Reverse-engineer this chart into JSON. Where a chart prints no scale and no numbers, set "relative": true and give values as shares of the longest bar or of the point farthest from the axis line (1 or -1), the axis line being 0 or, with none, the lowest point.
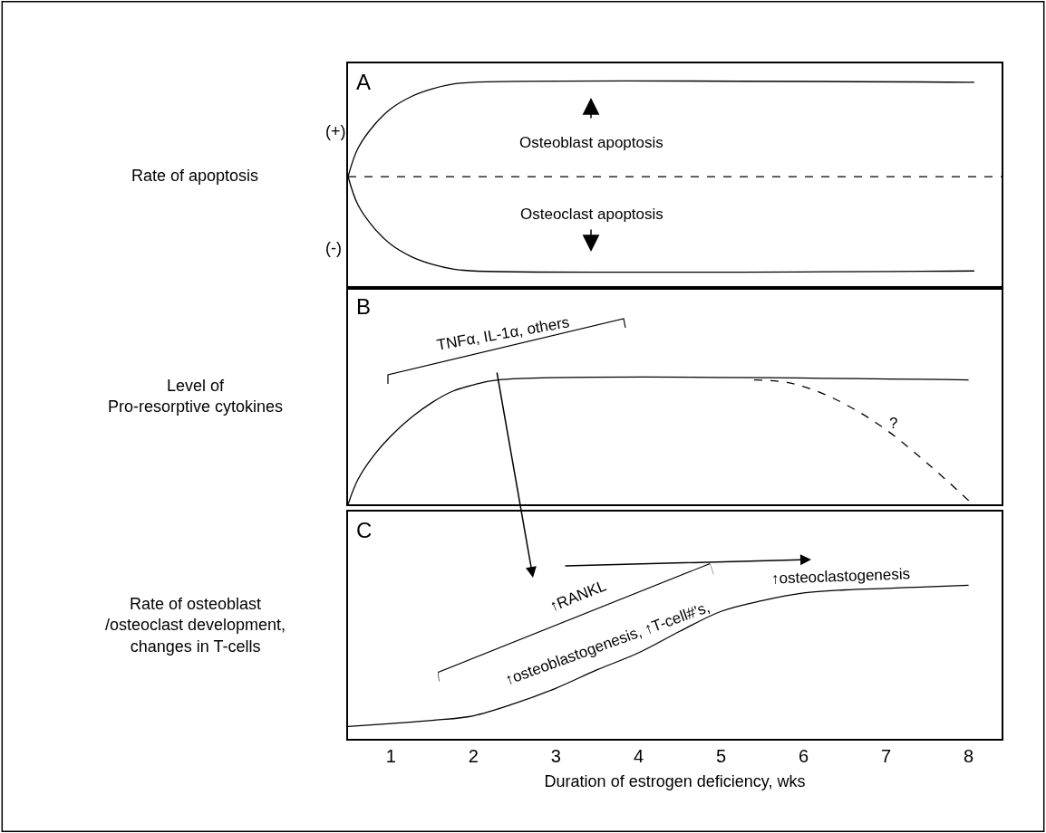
{
  "chart_data": [
    {
      "type": "line",
      "title": "A",
      "ylabel": "Rate of apoptosis",
      "relative": true,
      "tick_labels": false,
      "xlim": [
        0.48,
        8.4
      ],
      "xticks": [
        1,
        2,
        3,
        4,
        5,
        6,
        7,
        8
      ],
      "series": [
        {
          "color": "#000000",
          "x": [
            0.48,
            0.6,
            0.8,
            1.0,
            1.25,
            1.5,
            1.75,
            2.0,
            8.07
          ],
          "values": [
            0,
            0.3,
            0.55,
            0.72,
            0.85,
            0.93,
            0.98,
            1,
            1
          ]
        },
        {
          "color": "#000000",
          "x": [
            0.48,
            0.6,
            0.8,
            1.0,
            1.25,
            1.5,
            1.75,
            2.0,
            8.07
          ],
          "values": [
            0,
            -0.3,
            -0.55,
            -0.72,
            -0.85,
            -0.93,
            -0.98,
            -1,
            -1
          ]
        }
      ],
      "ref_lines": [
        {
          "axis": "y",
          "value": 0,
          "line_style": "dashed",
          "color": "#000000"
        }
      ],
      "annotations": [
        "(+)",
        "(-)",
        "Osteoblast apoptosis",
        "Osteoclast apoptosis"
      ]
    },
    {
      "type": "line",
      "title": "B",
      "ylabel": "Level of\nPro-resorptive cytokines",
      "relative": true,
      "tick_labels": false,
      "xlim": [
        0.48,
        8.4
      ],
      "xticks": [
        1,
        2,
        3,
        4,
        5,
        6,
        7,
        8
      ],
      "series": [
        {
          "color": "#000000",
          "line_style": "solid",
          "x": [
            0.48,
            0.6,
            0.8,
            1.0,
            1.25,
            1.5,
            1.75,
            2.0,
            2.3,
            8.0
          ],
          "values": [
            0,
            0.2,
            0.4,
            0.55,
            0.7,
            0.82,
            0.91,
            0.96,
            1,
            1
          ]
        },
        {
          "color": "#000000",
          "line_style": "dashed",
          "x": [
            5.4,
            5.8,
            6.2,
            6.6,
            7.0,
            7.5,
            8.05
          ],
          "values": [
            1,
            0.98,
            0.9,
            0.77,
            0.6,
            0.33,
            0
          ]
        }
      ],
      "annotations": [
        "TNFα, IL-1α, others",
        "?"
      ]
    },
    {
      "type": "line",
      "title": "C",
      "ylabel": "Rate of osteoblast\n/osteoclast development,\nchanges in T-cells",
      "xlabel": "Duration of estrogen deficiency, wks",
      "relative": true,
      "tick_labels": "x",
      "xlim": [
        0.48,
        8.4
      ],
      "xticks": [
        1,
        2,
        3,
        4,
        5,
        6,
        7,
        8
      ],
      "series": [
        {
          "color": "#000000",
          "x": [
            0.48,
            1.0,
            1.5,
            2.0,
            2.5,
            3.0,
            3.5,
            4.0,
            4.5,
            5.0,
            5.5,
            6.0,
            6.5,
            7.0,
            7.5,
            8.0
          ],
          "values": [
            0.08,
            0.1,
            0.12,
            0.15,
            0.23,
            0.33,
            0.45,
            0.56,
            0.7,
            0.83,
            0.9,
            0.95,
            0.97,
            0.98,
            0.99,
            1
          ]
        }
      ],
      "annotations": [
        "↑RANKL",
        "↑osteoblastogenesis, ↑T-cell#'s,",
        "↑osteoclastogenesis"
      ]
    }
  ]
}
